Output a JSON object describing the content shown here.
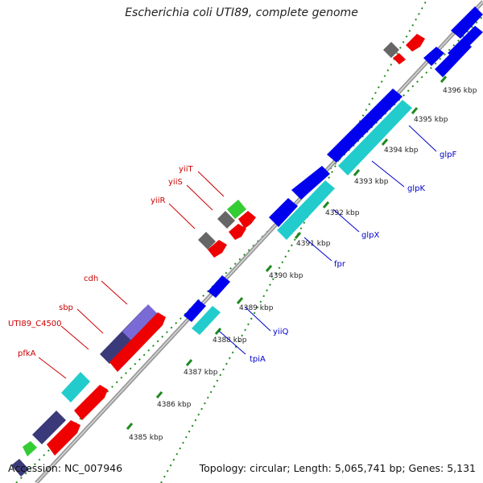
{
  "title": "Escherichia coli UTI89, complete genome",
  "footer": {
    "accession": "Accession: NC_007946",
    "topology": "Topology: circular; Length: 5,065,741 bp; Genes: 5,131"
  },
  "colors": {
    "backbone": "#8c8c8c",
    "cds_forward": "#ff0000",
    "cds_reverse_blue": "#0000ee",
    "cyan": "#22cccc",
    "gray": "#666666",
    "purple": "#5a4cb8",
    "navy": "#3a3a7a",
    "green": "#33cc33",
    "tick_major": "#2a8a2a",
    "label_red": "#cc0000",
    "label_blue": "#0000cc"
  },
  "ticks": [
    {
      "label": "4385 kbp"
    },
    {
      "label": "4386 kbp"
    },
    {
      "label": "4387 kbp"
    },
    {
      "label": "4388 kbp"
    },
    {
      "label": "4389 kbp"
    },
    {
      "label": "4390 kbp"
    },
    {
      "label": "4391 kbp"
    },
    {
      "label": "4392 kbp"
    },
    {
      "label": "4393 kbp"
    },
    {
      "label": "4394 kbp"
    },
    {
      "label": "4395 kbp"
    },
    {
      "label": "4396 kbp"
    }
  ],
  "genes_upper": [
    {
      "name": "pfkA",
      "color": "red"
    },
    {
      "name": "UTI89_C4500",
      "color": "red"
    },
    {
      "name": "sbp",
      "color": "red"
    },
    {
      "name": "cdh",
      "color": "red"
    },
    {
      "name": "yiiR",
      "color": "red"
    },
    {
      "name": "yiiS",
      "color": "red"
    },
    {
      "name": "yiiT",
      "color": "red"
    }
  ],
  "genes_lower": [
    {
      "name": "tpiA",
      "color": "blue"
    },
    {
      "name": "yiiQ",
      "color": "blue"
    },
    {
      "name": "fpr",
      "color": "blue"
    },
    {
      "name": "glpX",
      "color": "blue"
    },
    {
      "name": "glpK",
      "color": "blue"
    },
    {
      "name": "glpF",
      "color": "blue"
    }
  ]
}
